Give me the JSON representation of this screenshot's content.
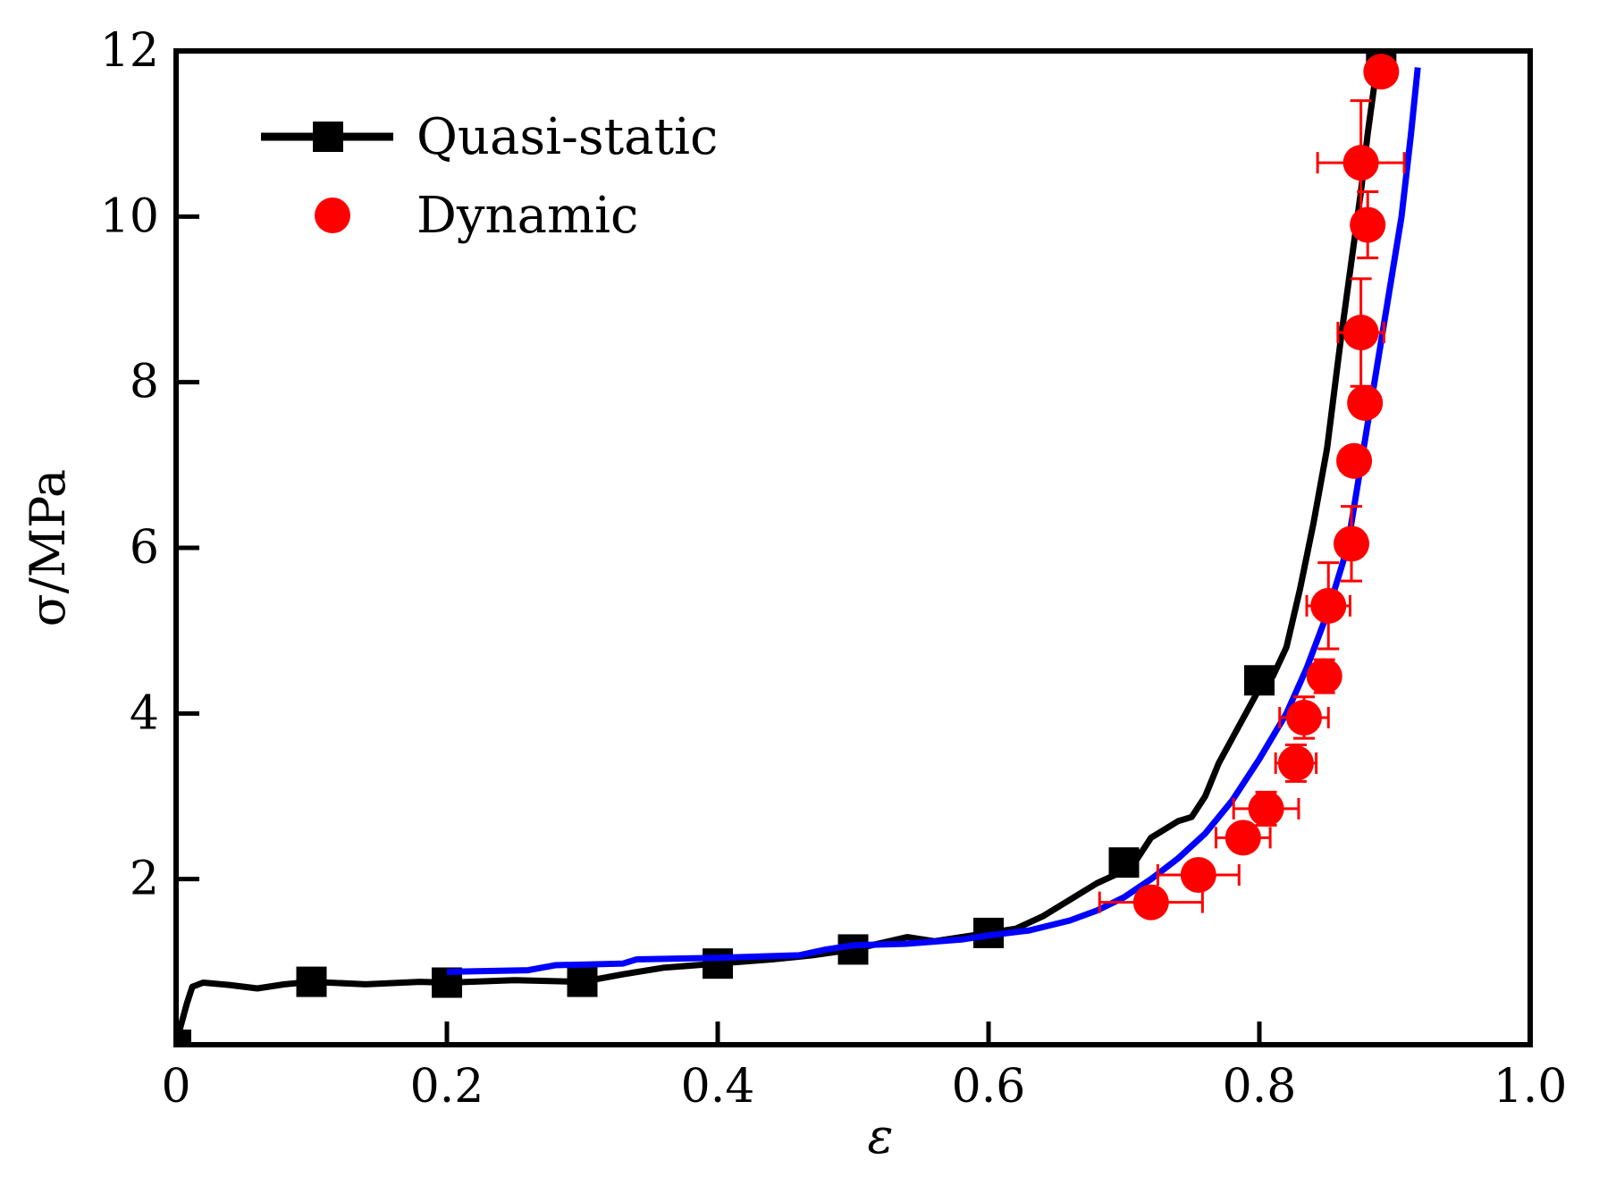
{
  "chart_data": {
    "type": "scatter",
    "xlabel": "ε",
    "ylabel": "σ/MPa",
    "xlim": [
      0,
      1.0
    ],
    "ylim": [
      0,
      12
    ],
    "x_ticks": [
      "0",
      "0.2",
      "0.4",
      "0.6",
      "0.8",
      "1.0"
    ],
    "y_ticks": [
      "2",
      "4",
      "6",
      "8",
      "10",
      "12"
    ],
    "grid": false,
    "legend_position": "top-left",
    "series": [
      {
        "name": "Quasi-static",
        "style": "line-with-square-markers",
        "color": "#000000",
        "points": [
          [
            0.0,
            0.0
          ],
          [
            0.003,
            0.2
          ],
          [
            0.008,
            0.5
          ],
          [
            0.012,
            0.7
          ],
          [
            0.02,
            0.75
          ],
          [
            0.04,
            0.72
          ],
          [
            0.06,
            0.68
          ],
          [
            0.08,
            0.73
          ],
          [
            0.1,
            0.76
          ],
          [
            0.14,
            0.73
          ],
          [
            0.18,
            0.76
          ],
          [
            0.2,
            0.75
          ],
          [
            0.25,
            0.78
          ],
          [
            0.3,
            0.76
          ],
          [
            0.33,
            0.85
          ],
          [
            0.36,
            0.93
          ],
          [
            0.4,
            0.98
          ],
          [
            0.44,
            1.03
          ],
          [
            0.47,
            1.08
          ],
          [
            0.5,
            1.15
          ],
          [
            0.54,
            1.3
          ],
          [
            0.56,
            1.25
          ],
          [
            0.58,
            1.3
          ],
          [
            0.6,
            1.35
          ],
          [
            0.62,
            1.4
          ],
          [
            0.64,
            1.55
          ],
          [
            0.66,
            1.75
          ],
          [
            0.68,
            1.95
          ],
          [
            0.7,
            2.1
          ],
          [
            0.71,
            2.25
          ],
          [
            0.72,
            2.5
          ],
          [
            0.74,
            2.7
          ],
          [
            0.75,
            2.75
          ],
          [
            0.76,
            3.0
          ],
          [
            0.77,
            3.4
          ],
          [
            0.78,
            3.7
          ],
          [
            0.79,
            4.0
          ],
          [
            0.8,
            4.3
          ],
          [
            0.81,
            4.45
          ],
          [
            0.82,
            4.8
          ],
          [
            0.83,
            5.5
          ],
          [
            0.84,
            6.3
          ],
          [
            0.85,
            7.2
          ],
          [
            0.86,
            8.5
          ],
          [
            0.87,
            9.7
          ],
          [
            0.875,
            10.3
          ],
          [
            0.88,
            11.0
          ],
          [
            0.885,
            11.6
          ],
          [
            0.89,
            12.0
          ]
        ],
        "markers": [
          [
            0.0,
            0.0
          ],
          [
            0.1,
            0.76
          ],
          [
            0.2,
            0.75
          ],
          [
            0.3,
            0.76
          ],
          [
            0.4,
            0.98
          ],
          [
            0.5,
            1.15
          ],
          [
            0.6,
            1.35
          ],
          [
            0.7,
            2.2
          ],
          [
            0.8,
            4.4
          ],
          [
            0.89,
            12.0
          ]
        ]
      },
      {
        "name": "",
        "style": "line",
        "color": "#0000ff",
        "points": [
          [
            0.2,
            0.88
          ],
          [
            0.26,
            0.9
          ],
          [
            0.28,
            0.96
          ],
          [
            0.33,
            0.98
          ],
          [
            0.34,
            1.03
          ],
          [
            0.4,
            1.05
          ],
          [
            0.46,
            1.08
          ],
          [
            0.48,
            1.15
          ],
          [
            0.5,
            1.2
          ],
          [
            0.54,
            1.22
          ],
          [
            0.58,
            1.27
          ],
          [
            0.6,
            1.32
          ],
          [
            0.63,
            1.38
          ],
          [
            0.66,
            1.5
          ],
          [
            0.68,
            1.62
          ],
          [
            0.7,
            1.78
          ],
          [
            0.72,
            2.0
          ],
          [
            0.74,
            2.25
          ],
          [
            0.76,
            2.55
          ],
          [
            0.78,
            2.95
          ],
          [
            0.8,
            3.45
          ],
          [
            0.82,
            4.0
          ],
          [
            0.835,
            4.55
          ],
          [
            0.85,
            5.2
          ],
          [
            0.865,
            6.0
          ],
          [
            0.875,
            7.0
          ],
          [
            0.885,
            8.0
          ],
          [
            0.895,
            9.0
          ],
          [
            0.905,
            10.0
          ],
          [
            0.912,
            11.0
          ],
          [
            0.917,
            11.8
          ]
        ]
      },
      {
        "name": "Dynamic",
        "style": "markers-with-error-bars",
        "color": "#ff0000",
        "points": [
          {
            "x": 0.72,
            "y": 1.72,
            "xerr": 0.038,
            "yerr": 0.08
          },
          {
            "x": 0.755,
            "y": 2.05,
            "xerr": 0.03,
            "yerr": 0.12
          },
          {
            "x": 0.788,
            "y": 2.5,
            "xerr": 0.02,
            "yerr": 0.15
          },
          {
            "x": 0.805,
            "y": 2.85,
            "xerr": 0.024,
            "yerr": 0.2
          },
          {
            "x": 0.827,
            "y": 3.4,
            "xerr": 0.015,
            "yerr": 0.22
          },
          {
            "x": 0.833,
            "y": 3.95,
            "xerr": 0.018,
            "yerr": 0.25
          },
          {
            "x": 0.848,
            "y": 4.45,
            "xerr": 0.008,
            "yerr": 0.2
          },
          {
            "x": 0.851,
            "y": 5.3,
            "xerr": 0.016,
            "yerr": 0.52
          },
          {
            "x": 0.868,
            "y": 6.05,
            "xerr": 0.008,
            "yerr": 0.45
          },
          {
            "x": 0.87,
            "y": 7.05,
            "xerr": 0.01,
            "yerr": 0.15
          },
          {
            "x": 0.878,
            "y": 7.75,
            "xerr": 0.005,
            "yerr": 0.15
          },
          {
            "x": 0.875,
            "y": 8.6,
            "xerr": 0.017,
            "yerr": 0.65
          },
          {
            "x": 0.88,
            "y": 9.9,
            "xerr": 0.008,
            "yerr": 0.4
          },
          {
            "x": 0.875,
            "y": 10.65,
            "xerr": 0.032,
            "yerr": 0.75
          },
          {
            "x": 0.89,
            "y": 11.75,
            "xerr": 0.008,
            "yerr": 0.15
          }
        ]
      }
    ]
  }
}
